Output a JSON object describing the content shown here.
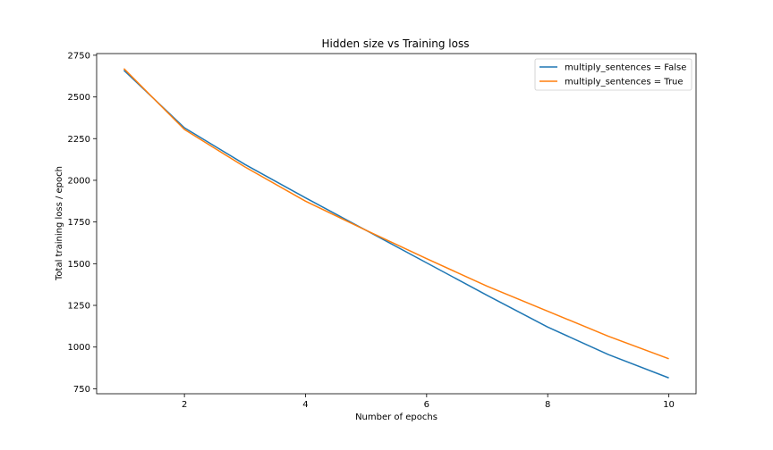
{
  "chart_data": {
    "type": "line",
    "title": "Hidden size vs Training loss",
    "xlabel": "Number of epochs",
    "ylabel": "Total training loss / epoch",
    "xlim": [
      0.55,
      10.45
    ],
    "ylim": [
      720,
      2760
    ],
    "xticks": [
      2,
      4,
      6,
      8,
      10
    ],
    "yticks": [
      750,
      1000,
      1250,
      1500,
      1750,
      2000,
      2250,
      2500,
      2750
    ],
    "grid": false,
    "legend_position": "top-right",
    "x": [
      1,
      2,
      3,
      4,
      5,
      6,
      7,
      8,
      9,
      10
    ],
    "series": [
      {
        "name": "multiply_sentences = False",
        "color": "#1f77b4",
        "values": [
          2660,
          2315,
          2095,
          1895,
          1700,
          1505,
          1310,
          1120,
          955,
          815
        ]
      },
      {
        "name": "multiply_sentences = True",
        "color": "#ff7f0e",
        "values": [
          2670,
          2305,
          2080,
          1875,
          1700,
          1530,
          1365,
          1215,
          1065,
          930
        ]
      }
    ]
  }
}
